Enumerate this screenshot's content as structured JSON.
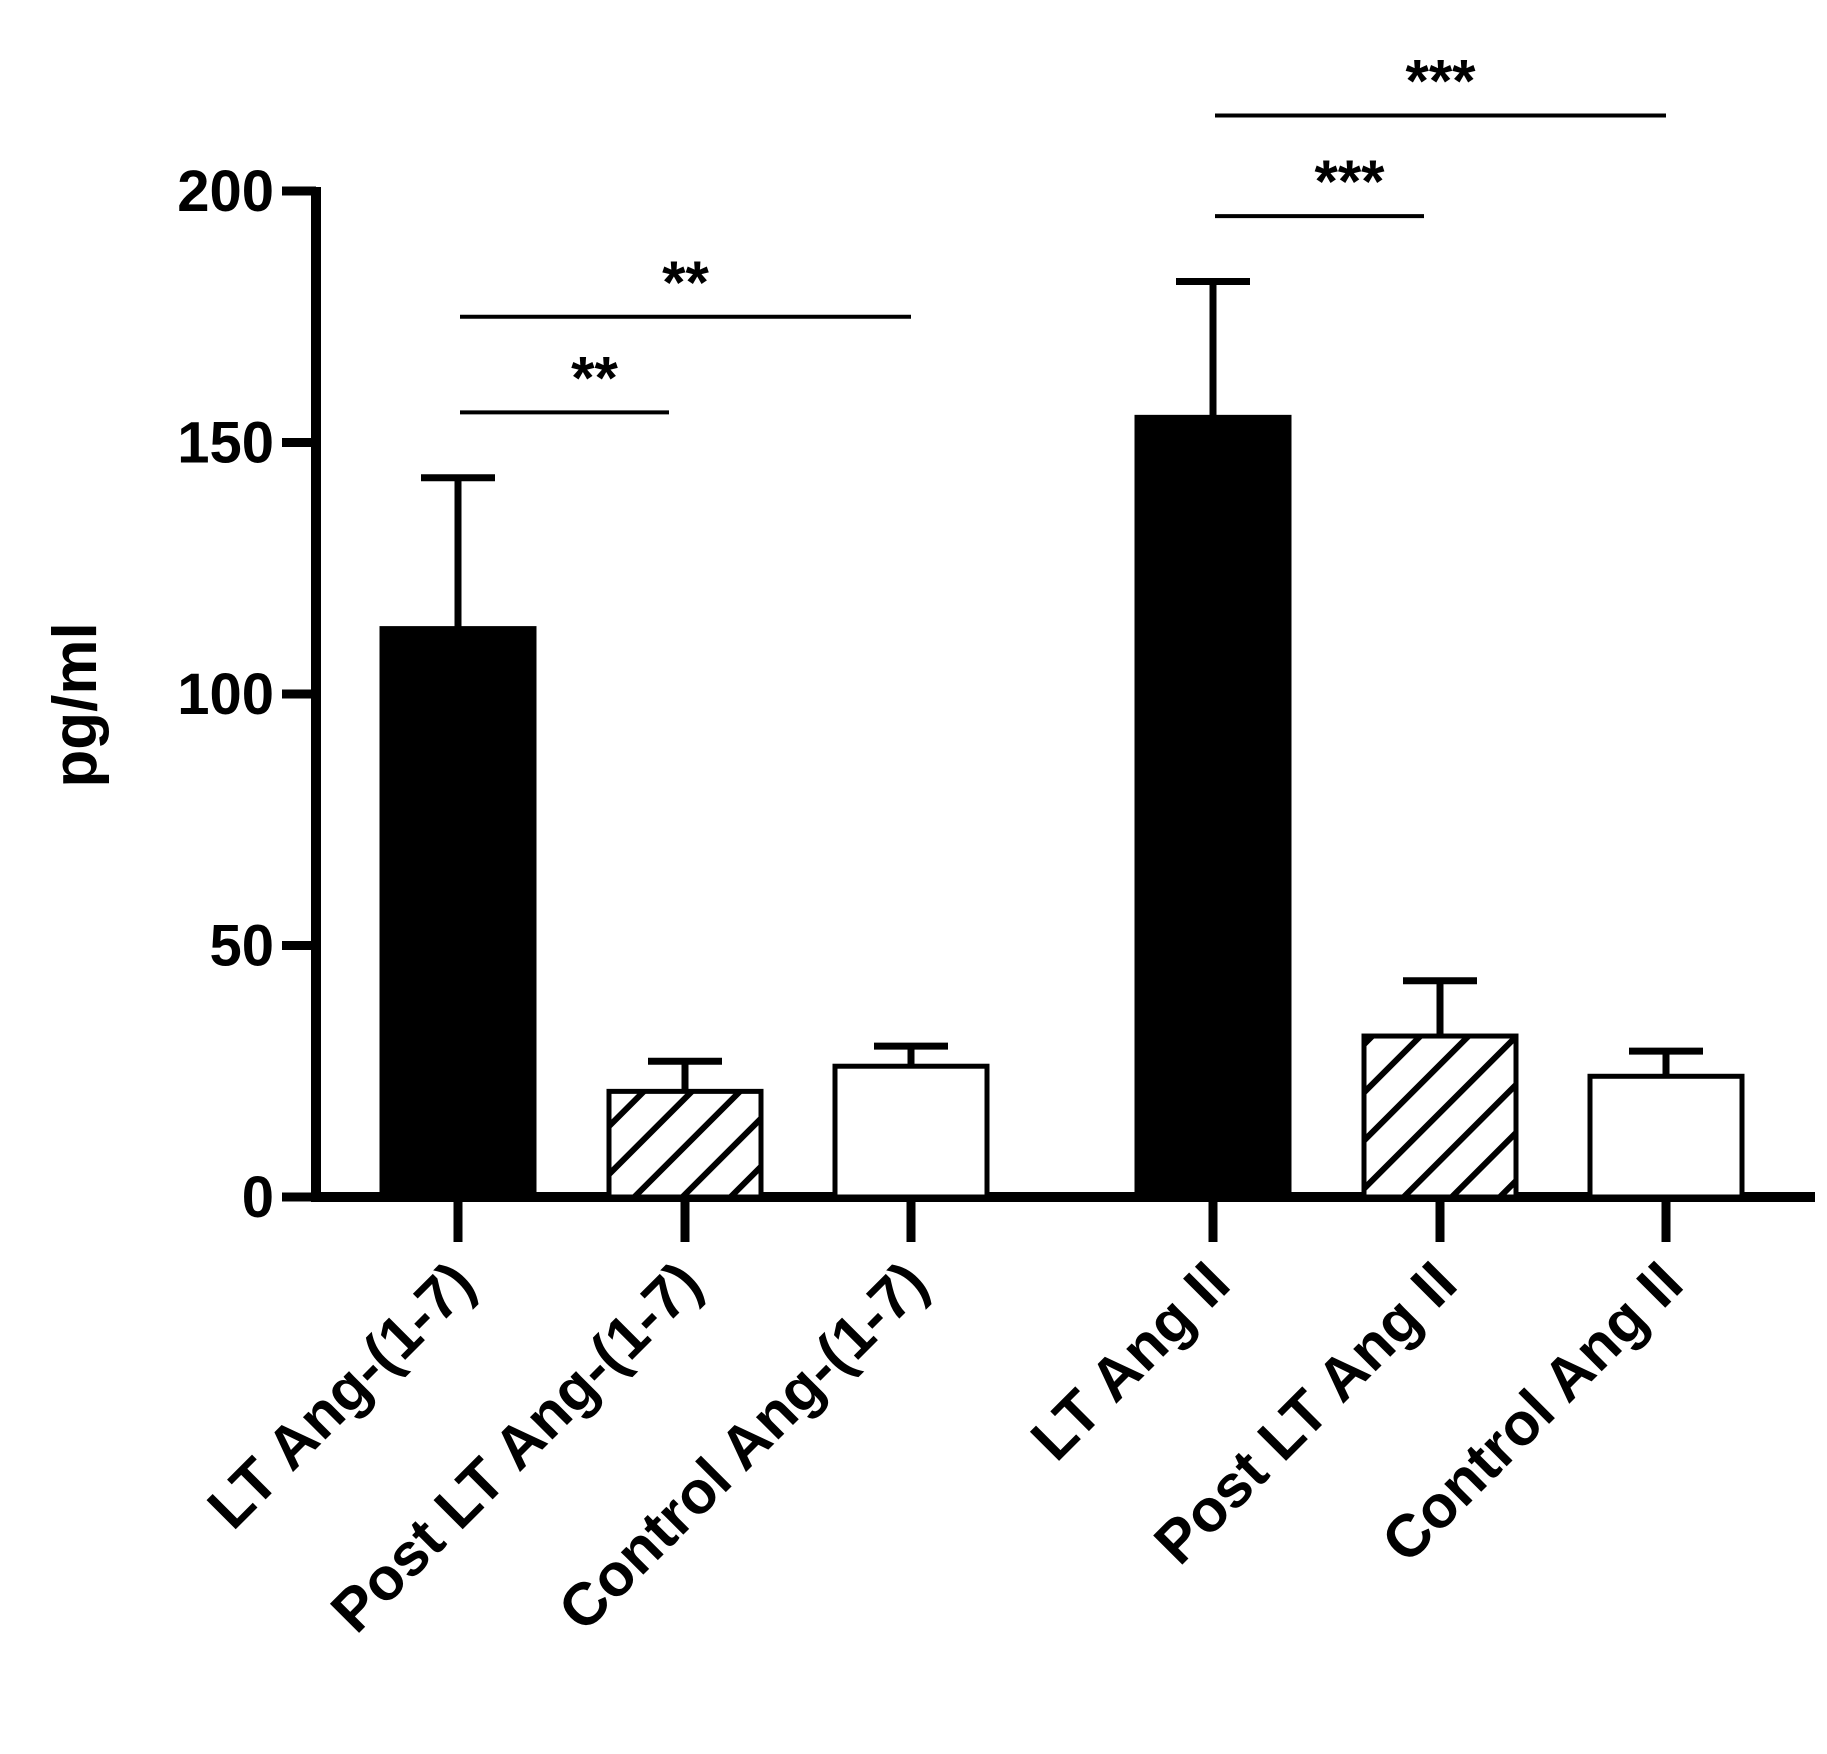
{
  "chart_data": {
    "type": "bar",
    "title": "",
    "xlabel": "",
    "ylabel": "pg/ml",
    "ylim": [
      0,
      200
    ],
    "yticks": [
      0,
      50,
      100,
      150,
      200
    ],
    "grid": false,
    "legend": "none",
    "categories": [
      "LT Ang-(1-7)",
      "Post LT Ang-(1-7)",
      "Control Ang-(1-7)",
      "LT Ang II",
      "Post LT Ang II",
      "Control Ang II"
    ],
    "values": [
      113,
      21,
      26,
      155,
      32,
      24
    ],
    "errors": [
      30,
      6,
      4,
      27,
      11,
      5
    ],
    "fills": [
      "solid",
      "hatched",
      "open",
      "solid",
      "hatched",
      "open"
    ],
    "significance": [
      {
        "from": 0,
        "to": 1,
        "y": 156,
        "label": "**"
      },
      {
        "from": 0,
        "to": 2,
        "y": 175,
        "label": "**"
      },
      {
        "from": 3,
        "to": 4,
        "y": 195,
        "label": "***"
      },
      {
        "from": 3,
        "to": 5,
        "y": 215,
        "label": "***"
      }
    ],
    "colors": {
      "bar": "#000000",
      "axis": "#000000",
      "open": "#ffffff"
    }
  }
}
